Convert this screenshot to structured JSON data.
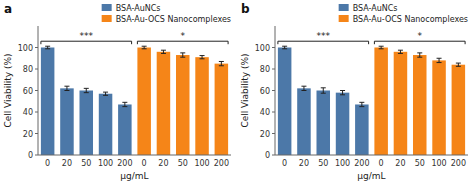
{
  "chart_data": [
    {
      "type": "bar",
      "title": "a",
      "xlabel": "μg/mL",
      "ylabel": "Cell Viability (%)",
      "categories": [
        "0",
        "20",
        "50",
        "100",
        "200",
        "0",
        "20",
        "50",
        "100",
        "200"
      ],
      "series": [
        {
          "name": "BSA-AuNCs",
          "values": [
            100,
            62,
            60,
            57,
            47,
            null,
            null,
            null,
            null,
            null
          ],
          "errors": [
            1.2,
            2.0,
            2.0,
            1.5,
            2.0,
            null,
            null,
            null,
            null,
            null
          ]
        },
        {
          "name": "BSA-Au-OCS Nanocomplexes",
          "values": [
            null,
            null,
            null,
            null,
            null,
            100,
            96,
            93,
            91,
            85
          ],
          "errors": [
            null,
            null,
            null,
            null,
            null,
            1.2,
            1.5,
            2.0,
            1.5,
            2.0
          ]
        }
      ],
      "annotations": [
        "***",
        "*"
      ],
      "ylim": [
        0,
        120
      ],
      "yticks": [
        0,
        20,
        40,
        60,
        80,
        100
      ],
      "grid": false,
      "legend": "upper right"
    },
    {
      "type": "bar",
      "title": "b",
      "xlabel": "μg/mL",
      "ylabel": "Cell Viability (%)",
      "categories": [
        "0",
        "20",
        "50",
        "100",
        "200",
        "0",
        "20",
        "50",
        "100",
        "200"
      ],
      "series": [
        {
          "name": "BSA-AuNCs",
          "values": [
            100,
            62,
            60,
            58,
            47,
            null,
            null,
            null,
            null,
            null
          ],
          "errors": [
            1.2,
            2.0,
            2.5,
            2.0,
            2.0,
            null,
            null,
            null,
            null,
            null
          ]
        },
        {
          "name": "BSA-Au-OCS Nanocomplexes",
          "values": [
            null,
            null,
            null,
            null,
            null,
            100,
            96,
            93,
            88,
            84
          ],
          "errors": [
            null,
            null,
            null,
            null,
            null,
            1.2,
            1.5,
            2.0,
            2.0,
            1.5
          ]
        }
      ],
      "annotations": [
        "***",
        "*"
      ],
      "ylim": [
        0,
        120
      ],
      "yticks": [
        0,
        20,
        40,
        60,
        80,
        100
      ],
      "grid": false,
      "legend": "upper right"
    }
  ]
}
